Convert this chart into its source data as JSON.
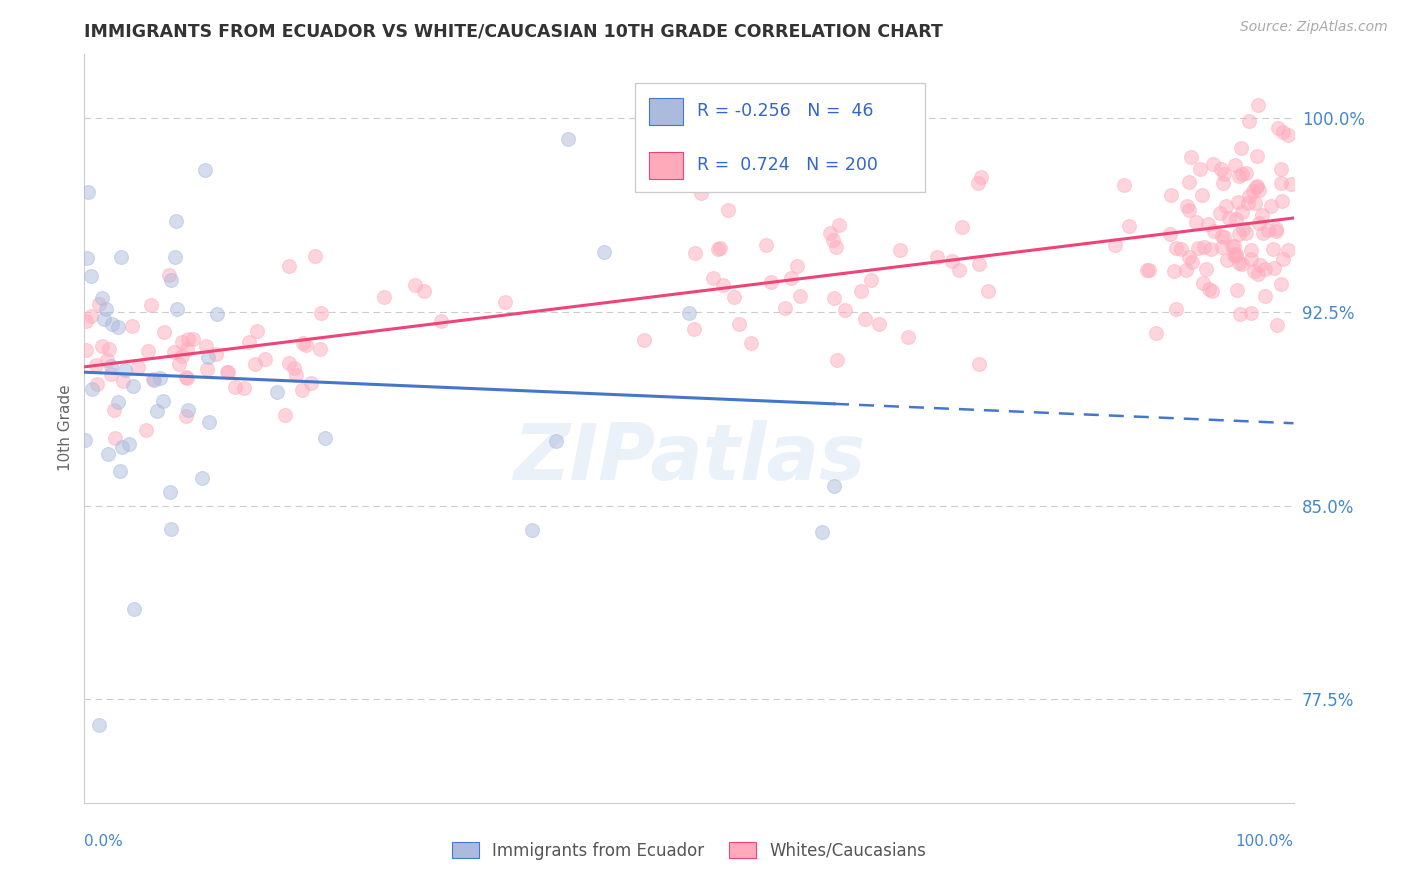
{
  "title": "IMMIGRANTS FROM ECUADOR VS WHITE/CAUCASIAN 10TH GRADE CORRELATION CHART",
  "source_text": "Source: ZipAtlas.com",
  "ylabel": "10th Grade",
  "xlim": [
    0.0,
    1.0
  ],
  "ylim": [
    0.735,
    1.025
  ],
  "yticks": [
    0.775,
    0.85,
    0.925,
    1.0
  ],
  "ytick_labels": [
    "77.5%",
    "85.0%",
    "92.5%",
    "100.0%"
  ],
  "legend_bottom": [
    "Immigrants from Ecuador",
    "Whites/Caucasians"
  ],
  "ecuador_color": "#aabbdd",
  "ecuador_edge": "#7799cc",
  "white_color": "#ffaabb",
  "white_edge": "#ee7799",
  "ecuador_line_color": "#4477cc",
  "white_line_color": "#ee4477",
  "ecuador_R": -0.256,
  "ecuador_N": 46,
  "white_R": 0.724,
  "white_N": 200,
  "watermark": "ZIPatlas",
  "background_color": "#ffffff",
  "grid_color": "#cccccc",
  "tick_color": "#4488cc",
  "title_color": "#333333",
  "legend_text_color": "#3366cc",
  "title_fontsize": 12.5,
  "source_fontsize": 10,
  "marker_size": 100,
  "marker_alpha": 0.5
}
